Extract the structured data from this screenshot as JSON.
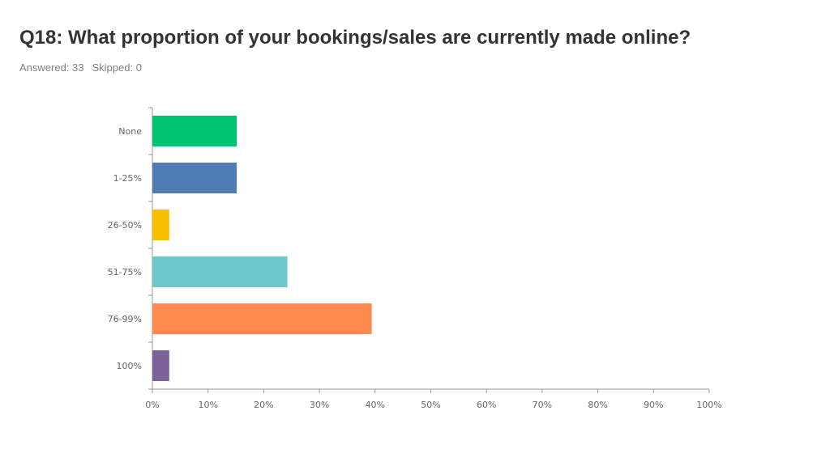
{
  "header": {
    "title": "Q18: What proportion of your bookings/sales are currently made online?",
    "answered": "Answered: 33",
    "skipped": "Skipped: 0"
  },
  "chart_data": {
    "type": "bar",
    "orientation": "horizontal",
    "categories": [
      "None",
      "1-25%",
      "26-50%",
      "51-75%",
      "76-99%",
      "100%"
    ],
    "values": [
      15.15,
      15.15,
      3.03,
      24.24,
      39.39,
      3.03
    ],
    "colors": [
      "#00C472",
      "#507CB6",
      "#F7BF00",
      "#6CC8CC",
      "#FF8B4F",
      "#7C6199"
    ],
    "xlim": [
      0,
      100
    ],
    "xticks": [
      "0%",
      "10%",
      "20%",
      "30%",
      "40%",
      "50%",
      "60%",
      "70%",
      "80%",
      "90%",
      "100%"
    ],
    "axis_color": "#999999",
    "grid": false
  }
}
